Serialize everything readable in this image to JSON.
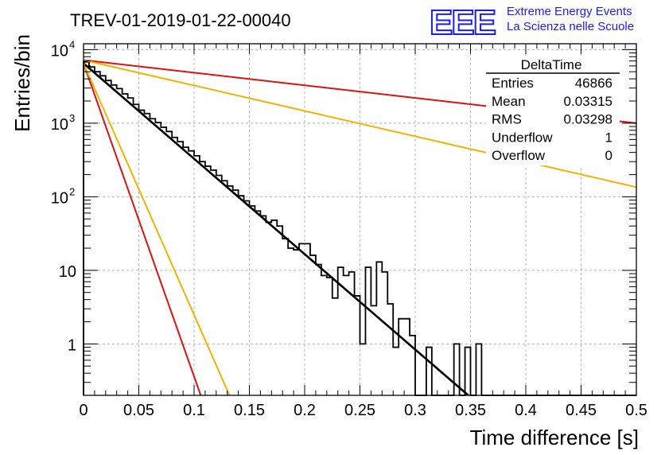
{
  "header": {
    "title": "TREV-01-2019-01-22-00040",
    "logo_text": "EEE",
    "logo_line1": "Extreme Energy Events",
    "logo_line2": "La Scienza nelle Scuole",
    "logo_color": "#1a1aff"
  },
  "stats_box": {
    "title": "DeltaTime",
    "rows": [
      {
        "label": "Entries",
        "value": "46866"
      },
      {
        "label": "Mean",
        "value": "0.03315"
      },
      {
        "label": "RMS",
        "value": "0.03298"
      },
      {
        "label": "Underflow",
        "value": "1"
      },
      {
        "label": "Overflow",
        "value": "0"
      }
    ]
  },
  "chart_data": {
    "type": "line",
    "xlabel": "Time difference [s]",
    "ylabel": "Entries/bin",
    "xlim": [
      0,
      0.5
    ],
    "ylim": [
      0.2,
      12000
    ],
    "yscale": "log",
    "grid": true,
    "x_ticks": [
      "0",
      "0.05",
      "0.1",
      "0.15",
      "0.2",
      "0.25",
      "0.3",
      "0.35",
      "0.4",
      "0.45",
      "0.5"
    ],
    "y_ticks": [
      {
        "value": 1,
        "label": "1"
      },
      {
        "value": 10,
        "label": "10"
      },
      {
        "value": 100,
        "label": "10",
        "exp": "2"
      },
      {
        "value": 1000,
        "label": "10",
        "exp": "3"
      },
      {
        "value": 10000,
        "label": "10",
        "exp": "4"
      }
    ],
    "histogram": {
      "name": "DeltaTime",
      "color": "#000000",
      "bin_width": 0.005,
      "values": [
        6800,
        5800,
        5000,
        4400,
        3800,
        3300,
        2950,
        2500,
        2200,
        1800,
        1500,
        1350,
        1150,
        1020,
        880,
        770,
        640,
        560,
        470,
        420,
        360,
        300,
        260,
        230,
        195,
        165,
        140,
        123,
        103,
        88,
        75,
        64,
        55,
        45,
        48,
        40,
        27,
        20,
        19,
        23,
        23,
        16,
        12,
        8.5,
        8,
        4.2,
        11,
        8.5,
        9.5,
        4.5,
        1,
        11,
        3.3,
        13,
        9.5,
        3.5,
        0.9,
        2.2,
        2.2,
        1.3,
        0.2,
        0.2,
        0.9,
        0.2,
        0.2,
        0.2,
        0.2,
        1,
        0.2,
        0.9,
        0.2,
        1,
        0.2,
        0.2,
        0.2,
        0.2,
        0.2,
        0.2,
        0.2,
        0.2,
        0.2,
        0.2,
        0.2,
        0.2,
        0.2,
        0.2,
        0.2,
        0.2,
        0.2,
        0.2,
        0.2,
        0.2,
        0.2,
        0.2,
        0.2,
        0.2,
        0.2,
        0.2,
        0.2,
        0.2
      ]
    },
    "fit_lines": [
      {
        "color": "#000000",
        "width": 2.6,
        "x": [
          0,
          0.348
        ],
        "y": [
          6500,
          0.2
        ]
      },
      {
        "color": "#dd1111",
        "width": 2,
        "x": [
          0,
          0.106
        ],
        "y": [
          6500,
          0.2
        ]
      },
      {
        "color": "#f2b200",
        "width": 2,
        "x": [
          0,
          0.132
        ],
        "y": [
          6500,
          0.2
        ]
      },
      {
        "color": "#dd1111",
        "width": 2,
        "x": [
          0,
          0.5
        ],
        "y": [
          7200,
          1000
        ]
      },
      {
        "color": "#f2b200",
        "width": 2,
        "x": [
          0,
          0.5
        ],
        "y": [
          7200,
          135
        ]
      }
    ]
  }
}
